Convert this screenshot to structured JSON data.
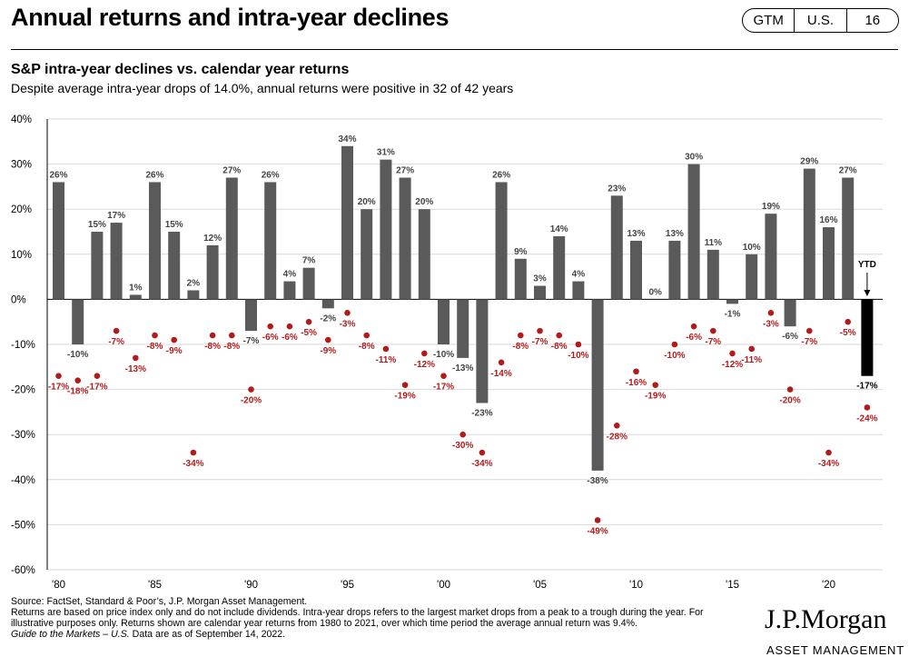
{
  "header": {
    "title": "Annual returns and intra-year declines",
    "badges": [
      "GTM",
      "U.S.",
      "16"
    ]
  },
  "colors": {
    "bar": "#5a5a5a",
    "ytd_bar": "#000000",
    "decline": "#b31b1b",
    "grid": "#d9d9d9"
  },
  "chart_data": {
    "type": "bar",
    "title": "S&P intra-year declines vs. calendar year returns",
    "subtitle": "Despite average intra-year drops of 14.0%, annual returns were positive in 32 of 42 years",
    "ylim": [
      -60,
      40
    ],
    "y_ticks": [
      40,
      30,
      20,
      10,
      0,
      -10,
      -20,
      -30,
      -40,
      -50,
      -60
    ],
    "y_tick_labels": [
      "40%",
      "30%",
      "20%",
      "10%",
      "0%",
      "-10%",
      "-20%",
      "-30%",
      "-40%",
      "-50%",
      "-60%"
    ],
    "x_tick_labels": [
      "'80",
      "'85",
      "'90",
      "'95",
      "'00",
      "'05",
      "'10",
      "'15",
      "'20"
    ],
    "years": [
      1980,
      1981,
      1982,
      1983,
      1984,
      1985,
      1986,
      1987,
      1988,
      1989,
      1990,
      1991,
      1992,
      1993,
      1994,
      1995,
      1996,
      1997,
      1998,
      1999,
      2000,
      2001,
      2002,
      2003,
      2004,
      2005,
      2006,
      2007,
      2008,
      2009,
      2010,
      2011,
      2012,
      2013,
      2014,
      2015,
      2016,
      2017,
      2018,
      2019,
      2020,
      2021,
      2022
    ],
    "series": [
      {
        "name": "Calendar year return",
        "values": [
          26,
          -10,
          15,
          17,
          1,
          26,
          15,
          2,
          12,
          27,
          -7,
          26,
          4,
          7,
          -2,
          34,
          20,
          31,
          27,
          20,
          -10,
          -13,
          -23,
          26,
          9,
          3,
          14,
          4,
          -38,
          23,
          13,
          0,
          13,
          30,
          11,
          -1,
          10,
          19,
          -6,
          29,
          16,
          27,
          -17
        ]
      },
      {
        "name": "Intra-year decline",
        "values": [
          -17,
          -18,
          -17,
          -7,
          -13,
          -8,
          -9,
          -34,
          -8,
          -8,
          -20,
          -6,
          -6,
          -5,
          -9,
          -3,
          -8,
          -11,
          -19,
          -12,
          -17,
          -30,
          -34,
          -14,
          -8,
          -7,
          -8,
          -10,
          -49,
          -28,
          -16,
          -19,
          -10,
          -6,
          -7,
          -12,
          -11,
          -3,
          -20,
          -7,
          -34,
          -5,
          -24
        ]
      }
    ],
    "ytd_label": "YTD",
    "annotations": {
      "ytd_index": 42
    }
  },
  "footnote": {
    "source": "Source: FactSet, Standard & Poor’s, J.P. Morgan Asset Management.",
    "note": "Returns are based on price index only and do not include dividends. Intra-year drops refers to the largest market drops from a peak to a trough during the year. For illustrative purposes only. Returns shown are calendar year returns from 1980 to 2021, over which time period the average annual return was 9.4%.",
    "guide_title": "Guide to the Markets – U.S.",
    "as_of": " Data are as of September 14, 2022."
  },
  "logo": {
    "name": "J.P.Morgan",
    "sub": "ASSET MANAGEMENT"
  }
}
